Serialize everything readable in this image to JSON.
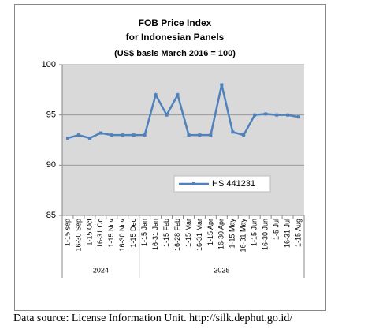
{
  "chart_data": {
    "type": "line",
    "title": [
      "FOB Price Index",
      "for Indonesian Panels",
      "(US$ basis March 2016 = 100)"
    ],
    "groups": [
      {
        "name": "2024",
        "categories": [
          "1-15 sep",
          "16-30 Sep",
          "1-15 Oct",
          "16-31 Oc",
          "1-15 Nov",
          "16-30 Nov",
          "1-15 Dec"
        ]
      },
      {
        "name": "2025",
        "categories": [
          "1-15 Jan",
          "16-31 Jan",
          "1-15 Feb",
          "16-28 Feb",
          "1-15 Mar",
          "16-31 Mar",
          "1-15 Apr",
          "16-30 Apr",
          "1-15 May",
          "16-31 May",
          "1-15 Jun",
          "16-30 Jun",
          "1-5 Jul",
          "16-31 Jul",
          "1-15 Aug"
        ]
      }
    ],
    "series": [
      {
        "name": "HS 441231",
        "color": "#4f81bd",
        "values": [
          92.7,
          93.0,
          92.7,
          93.2,
          93.0,
          93.0,
          93.0,
          93.0,
          97.0,
          95.0,
          97.0,
          93.0,
          93.0,
          93.0,
          98.0,
          93.3,
          93.0,
          95.0,
          95.1,
          95.0,
          95.0,
          94.8
        ]
      }
    ],
    "ylim": [
      85,
      100
    ],
    "yticks": [
      85,
      90,
      95,
      100
    ],
    "grid": true,
    "plot_background": "#d9d9d9",
    "legend": "center right",
    "source": "Data source: License Information Unit. http://silk.dephut.go.id/"
  }
}
